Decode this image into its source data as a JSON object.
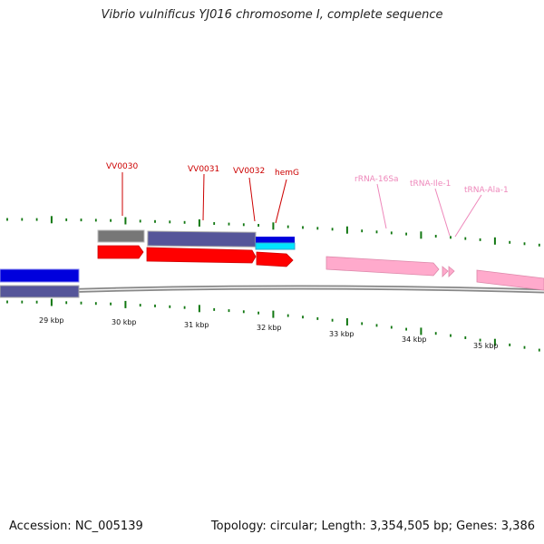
{
  "title": "Vibrio vulnificus YJ016 chromosome I, complete sequence",
  "footer": {
    "accession": "Accession: NC_005139",
    "stats": "Topology: circular; Length: 3,354,505 bp; Genes: 3,386"
  },
  "colors": {
    "protein_gene": "#cc0000",
    "rna_gene": "#ee88bb",
    "forward_cds": "#ff0000",
    "rna_feature": "#ffaacc",
    "cog_blue": "#0000dd",
    "cog_purple": "#555599",
    "cog_gray": "#777777",
    "cog_cyan": "#00e5ff",
    "backbone": "#666666",
    "tick": "#117711"
  },
  "gene_labels": [
    {
      "text": "VV0030",
      "type": "protein"
    },
    {
      "text": "VV0031",
      "type": "protein"
    },
    {
      "text": "VV0032",
      "type": "protein"
    },
    {
      "text": "hemG",
      "type": "protein"
    },
    {
      "text": "rRNA-16Sa",
      "type": "rna"
    },
    {
      "text": "tRNA-Ile-1",
      "type": "rna"
    },
    {
      "text": "tRNA-Ala-1",
      "type": "rna"
    }
  ],
  "scale_labels": [
    "29 kbp",
    "30 kbp",
    "31 kbp",
    "32 kbp",
    "33 kbp",
    "34 kbp",
    "35 kbp"
  ]
}
